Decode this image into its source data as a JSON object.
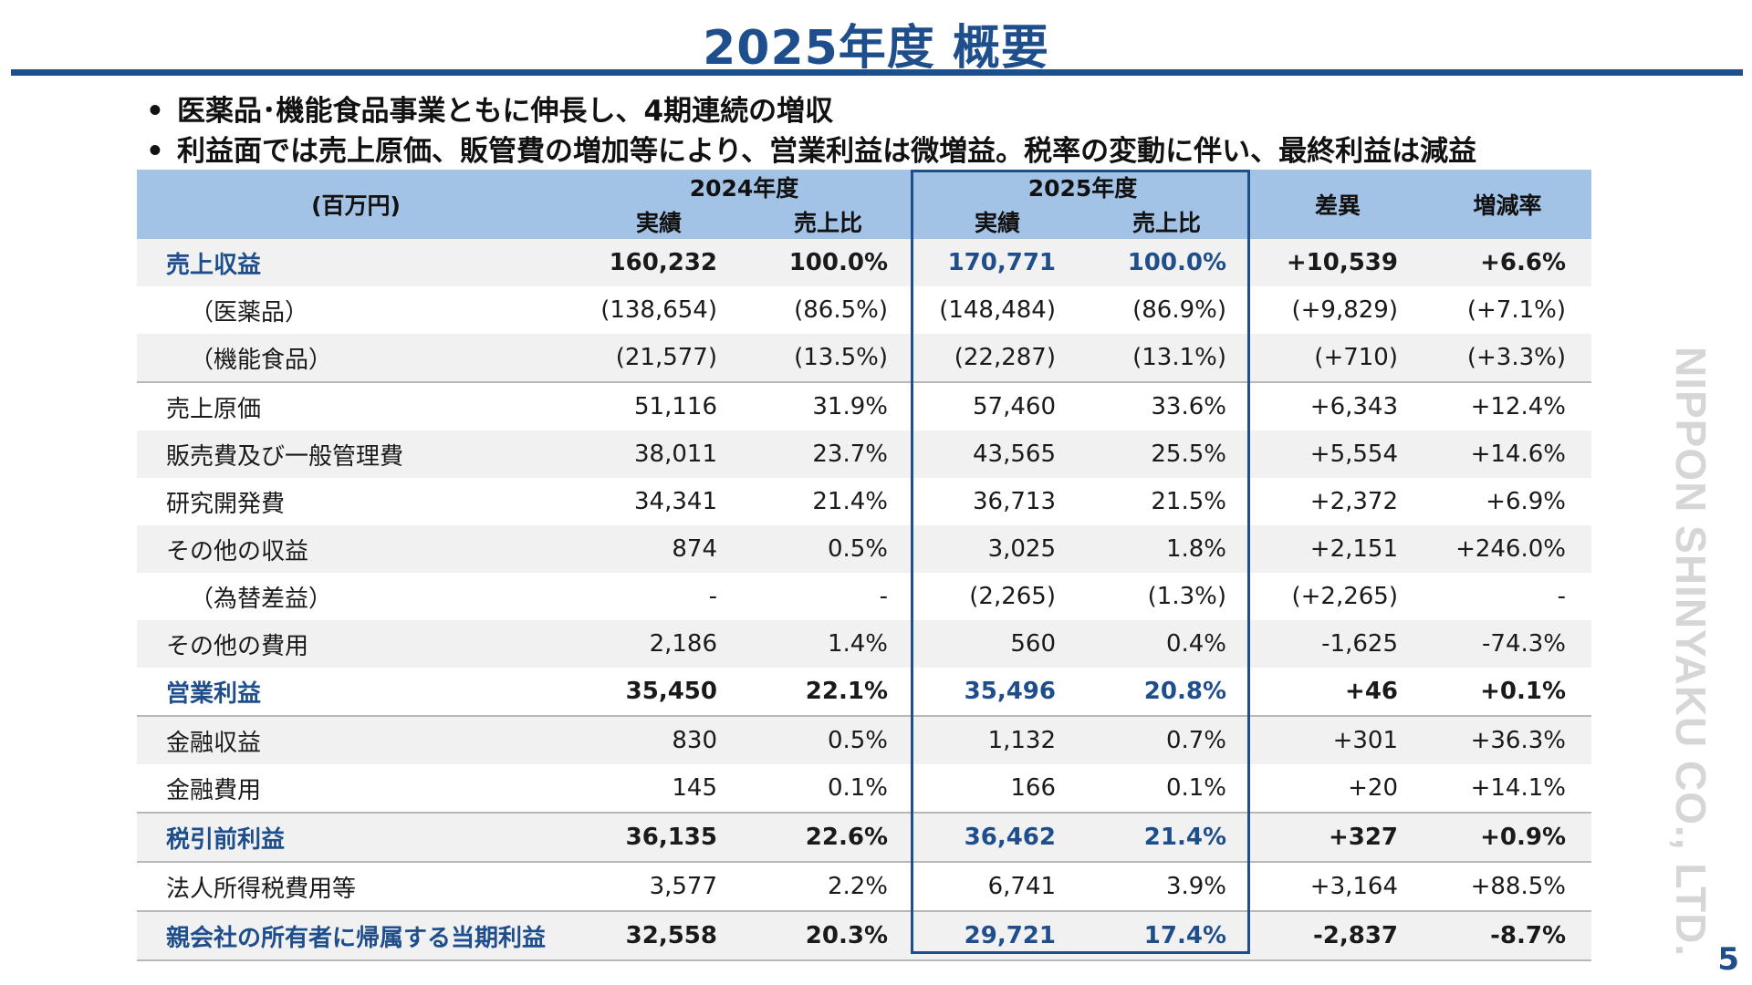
{
  "page": {
    "title": "2025年度 概要",
    "page_number": "5",
    "brand": "NIPPON SHINYAKU CO., LTD."
  },
  "bullets": [
    "医薬品･機能食品事業ともに伸長し、4期連続の増収",
    "利益面では売上原価、販管費の増加等により、営業利益は微増益。税率の変動に伴い、最終利益は減益"
  ],
  "table": {
    "unit": "(百万円)",
    "fy2024": "2024年度",
    "fy2025": "2025年度",
    "actual": "実績",
    "ratio": "売上比",
    "diff": "差異",
    "change": "増減率",
    "rows": [
      {
        "label": "売上収益",
        "v24": "160,232",
        "r24": "100.0%",
        "v25": "170,771",
        "r25": "100.0%",
        "diff": "+10,539",
        "rate": "+6.6%"
      },
      {
        "label": "（医薬品）",
        "v24": "(138,654)",
        "r24": "(86.5%)",
        "v25": "(148,484)",
        "r25": "(86.9%)",
        "diff": "(+9,829)",
        "rate": "(+7.1%)"
      },
      {
        "label": "（機能食品）",
        "v24": "(21,577)",
        "r24": "(13.5%)",
        "v25": "(22,287)",
        "r25": "(13.1%)",
        "diff": "(+710)",
        "rate": "(+3.3%)"
      },
      {
        "label": "売上原価",
        "v24": "51,116",
        "r24": "31.9%",
        "v25": "57,460",
        "r25": "33.6%",
        "diff": "+6,343",
        "rate": "+12.4%"
      },
      {
        "label": "販売費及び一般管理費",
        "v24": "38,011",
        "r24": "23.7%",
        "v25": "43,565",
        "r25": "25.5%",
        "diff": "+5,554",
        "rate": "+14.6%"
      },
      {
        "label": "研究開発費",
        "v24": "34,341",
        "r24": "21.4%",
        "v25": "36,713",
        "r25": "21.5%",
        "diff": "+2,372",
        "rate": "+6.9%"
      },
      {
        "label": "その他の収益",
        "v24": "874",
        "r24": "0.5%",
        "v25": "3,025",
        "r25": "1.8%",
        "diff": "+2,151",
        "rate": "+246.0%"
      },
      {
        "label": "（為替差益）",
        "v24": "-",
        "r24": "-",
        "v25": "(2,265)",
        "r25": "(1.3%)",
        "diff": "(+2,265)",
        "rate": "-"
      },
      {
        "label": "その他の費用",
        "v24": "2,186",
        "r24": "1.4%",
        "v25": "560",
        "r25": "0.4%",
        "diff": "-1,625",
        "rate": "-74.3%"
      },
      {
        "label": "営業利益",
        "v24": "35,450",
        "r24": "22.1%",
        "v25": "35,496",
        "r25": "20.8%",
        "diff": "+46",
        "rate": "+0.1%"
      },
      {
        "label": "金融収益",
        "v24": "830",
        "r24": "0.5%",
        "v25": "1,132",
        "r25": "0.7%",
        "diff": "+301",
        "rate": "+36.3%"
      },
      {
        "label": "金融費用",
        "v24": "145",
        "r24": "0.1%",
        "v25": "166",
        "r25": "0.1%",
        "diff": "+20",
        "rate": "+14.1%"
      },
      {
        "label": "税引前利益",
        "v24": "36,135",
        "r24": "22.6%",
        "v25": "36,462",
        "r25": "21.4%",
        "diff": "+327",
        "rate": "+0.9%"
      },
      {
        "label": "法人所得税費用等",
        "v24": "3,577",
        "r24": "2.2%",
        "v25": "6,741",
        "r25": "3.9%",
        "diff": "+3,164",
        "rate": "+88.5%"
      },
      {
        "label": "親会社の所有者に帰属する当期利益",
        "v24": "32,558",
        "r24": "20.3%",
        "v25": "29,721",
        "r25": "17.4%",
        "diff": "-2,837",
        "rate": "-8.7%"
      }
    ]
  }
}
